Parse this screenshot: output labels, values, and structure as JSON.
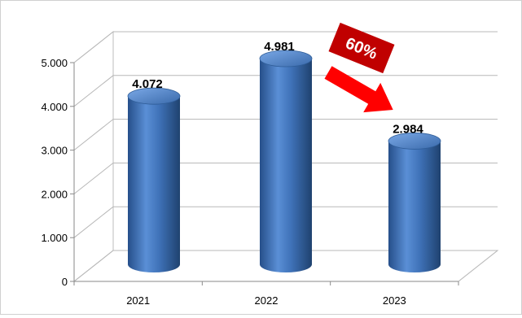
{
  "chart_data": {
    "type": "bar",
    "style": "3d-cylinder",
    "categories": [
      "2021",
      "2022",
      "2023"
    ],
    "values": [
      4072,
      4981,
      2984
    ],
    "data_labels": [
      "4.072",
      "4.981",
      "2.984"
    ],
    "yticks": [
      0,
      1000,
      2000,
      3000,
      4000,
      5000
    ],
    "ytick_labels": [
      "0",
      "1.000",
      "2.000",
      "3.000",
      "4.000",
      "5.000"
    ],
    "ylim": [
      0,
      5000
    ],
    "grid": true,
    "bar_color": "#3f72b8",
    "annotation": {
      "text": "60%",
      "badge_color": "#c00000",
      "arrow_color": "#ff0000",
      "direction": "down"
    }
  }
}
